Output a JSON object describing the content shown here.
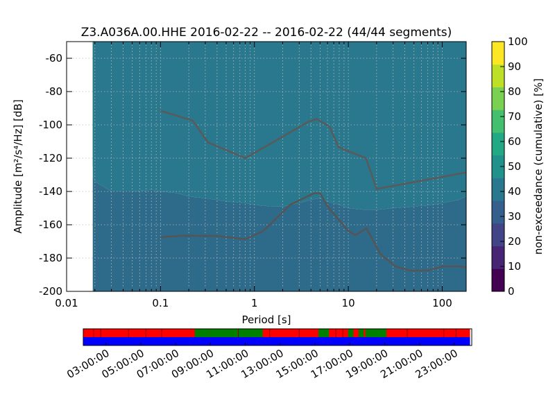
{
  "title": "Z3.A036A.00.HHE   2016-02-22 -- 2016-02-22  (44/44 segments)",
  "colors": {
    "nhnm": "#5a5a5a",
    "nlnm": "#555555",
    "gap": "#ff0000",
    "data_present": "#008000",
    "covered": "#0000ff",
    "plot_bg": "#ffffff"
  },
  "chart_data": [
    {
      "type": "heatmap",
      "title": "Z3.A036A.00.HHE   2016-02-22 -- 2016-02-22  (44/44 segments)",
      "xlabel": "Period [s]",
      "ylabel": "Amplitude [m²/s⁴/Hz] [dB]",
      "x_scale": "log",
      "xlim": [
        0.01,
        180
      ],
      "ylim": [
        -200,
        -50
      ],
      "x_tick_labels": [
        "0.01",
        "0.1",
        "1",
        "10",
        "100"
      ],
      "y_tick_labels": [
        "-60",
        "-80",
        "-100",
        "-120",
        "-140",
        "-160",
        "-180",
        "-200"
      ],
      "grid": true,
      "data_period_range": [
        0.019,
        180
      ],
      "psd_bands": {
        "description": "dB level at which cumulative non-exceedance reaches the given percent, per period",
        "period": [
          0.019,
          0.02,
          0.03,
          0.05,
          0.08,
          0.1,
          0.15,
          0.2,
          0.3,
          0.5,
          0.8,
          1,
          1.5,
          2,
          3,
          4,
          5,
          6,
          8,
          10,
          15,
          20,
          30,
          50,
          80,
          100,
          150,
          180
        ],
        "levels": [
          {
            "pct": 100,
            "db": [
              -104,
              -107,
              -117,
              -120,
              -117,
              -118,
              -120,
              -123,
              -127,
              -132,
              -137,
              -140,
              -141,
              -142,
              -138,
              -133,
              -129,
              -130,
              -133,
              -136,
              -138,
              -139,
              -138,
              -137,
              -135,
              -134,
              -131,
              -129
            ]
          },
          {
            "pct": 90,
            "db": [
              -112,
              -116,
              -121,
              -123,
              -122,
              -123,
              -125,
              -128,
              -131,
              -136,
              -140,
              -142,
              -143,
              -143,
              -139,
              -134,
              -131,
              -133,
              -137,
              -139,
              -140,
              -140,
              -140,
              -139,
              -137,
              -136,
              -134,
              -132
            ]
          },
          {
            "pct": 75,
            "db": [
              -118,
              -121,
              -126,
              -128,
              -127,
              -128,
              -130,
              -133,
              -135,
              -139,
              -142,
              -144,
              -145,
              -145,
              -141,
              -136,
              -134,
              -136,
              -140,
              -143,
              -144,
              -145,
              -144,
              -143,
              -141,
              -140,
              -138,
              -136
            ]
          },
          {
            "pct": 60,
            "db": [
              -125,
              -128,
              -133,
              -134,
              -133,
              -134,
              -136,
              -138,
              -140,
              -143,
              -145,
              -146,
              -147,
              -147,
              -144,
              -140,
              -138,
              -140,
              -144,
              -147,
              -148,
              -148,
              -147,
              -146,
              -144,
              -143,
              -141,
              -139
            ]
          },
          {
            "pct": 45,
            "db": [
              -130,
              -134,
              -140,
              -140,
              -139,
              -140,
              -141,
              -143,
              -144,
              -146,
              -147,
              -148,
              -149,
              -149,
              -147,
              -145,
              -144,
              -146,
              -148,
              -150,
              -151,
              -151,
              -150,
              -149,
              -148,
              -147,
              -145,
              -143
            ]
          }
        ]
      },
      "reference_curves": [
        {
          "label": "",
          "period": [
            0.1,
            0.22,
            0.32,
            0.8,
            3.8,
            4.6,
            6.3,
            7.9,
            15.4,
            20,
            180
          ],
          "db": [
            -91.5,
            -97.4,
            -110.5,
            -120.0,
            -98.0,
            -96.5,
            -101.0,
            -113.5,
            -120.0,
            -138.5,
            -128.6
          ]
        },
        {
          "label": "",
          "period": [
            0.1,
            0.17,
            0.4,
            0.8,
            1.24,
            2.4,
            4.3,
            5.0,
            6.0,
            10.0,
            12.0,
            15.6,
            21.9,
            31.6,
            45.0,
            70.0,
            101.0,
            154.0,
            180
          ],
          "db": [
            -167.5,
            -166.6,
            -166.7,
            -168.7,
            -163.8,
            -148.0,
            -141.1,
            -141.0,
            -149.0,
            -163.8,
            -166.2,
            -162.1,
            -177.5,
            -185.0,
            -187.5,
            -187.5,
            -185.0,
            -185.0,
            -185.5
          ]
        }
      ]
    },
    {
      "type": "colorbar",
      "label": "non-exceedance (cumulative) [%]",
      "range": [
        0,
        100
      ],
      "tick_labels": [
        "0",
        "10",
        "20",
        "30",
        "40",
        "50",
        "60",
        "70",
        "80",
        "90",
        "100"
      ],
      "colormap": [
        "#440154",
        "#482475",
        "#414487",
        "#355f8d",
        "#2a788e",
        "#21918c",
        "#22a884",
        "#44bf70",
        "#7ad151",
        "#bddf26",
        "#fde725"
      ]
    },
    {
      "type": "bar",
      "description": "data coverage timeline",
      "x_tick_labels": [
        "03:00:00",
        "05:00:00",
        "07:00:00",
        "09:00:00",
        "11:00:00",
        "13:00:00",
        "15:00:00",
        "17:00:00",
        "19:00:00",
        "21:00:00",
        "23:00:00"
      ],
      "x_range_hours": [
        1.7,
        24.0
      ],
      "covered_interval_hours": [
        1.7,
        23.9
      ],
      "present_data_segments_hours": [
        [
          8.1,
          9.0
        ],
        [
          9.0,
          10.0
        ],
        [
          10.0,
          11.0
        ],
        [
          11.0,
          12.0
        ],
        [
          15.2,
          15.8
        ],
        [
          16.9,
          17.2
        ],
        [
          17.5,
          17.8
        ],
        [
          17.9,
          19.1
        ]
      ],
      "gap_markers_hours": [
        2.3,
        2.7,
        4.3,
        5.3,
        6.2,
        10.6,
        12.4,
        14.1,
        16.2,
        16.6,
        20.3,
        22.4,
        23.1
      ]
    }
  ]
}
